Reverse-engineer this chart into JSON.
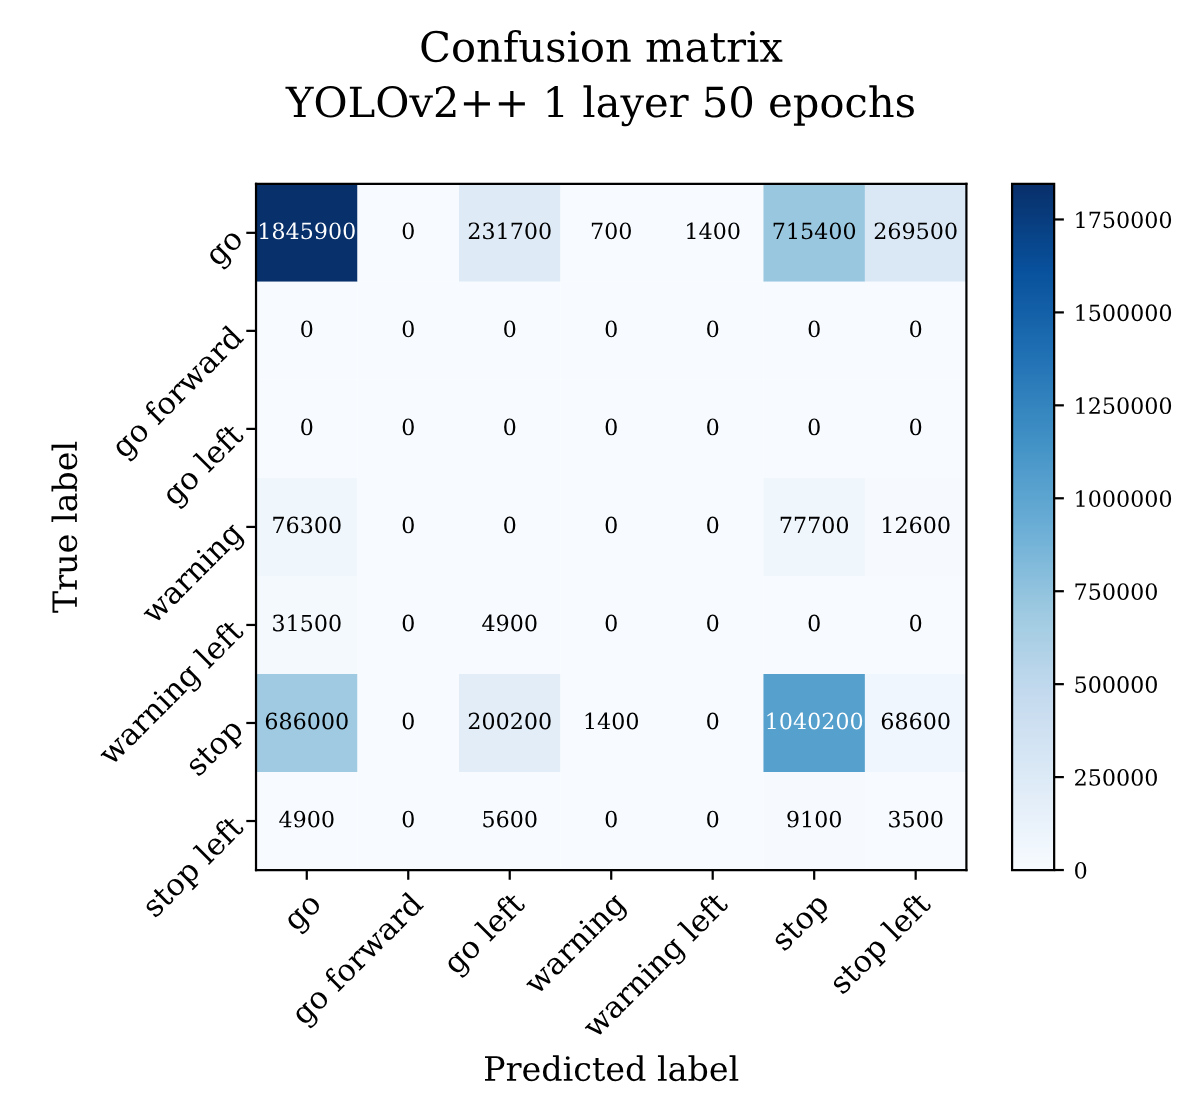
{
  "chart_data": {
    "type": "heatmap",
    "title": "Confusion matrix",
    "subtitle": "YOLOv2++ 1 layer 50 epochs",
    "xlabel": "Predicted label",
    "ylabel": "True label",
    "categories": [
      "go",
      "go forward",
      "go left",
      "warning",
      "warning left",
      "stop",
      "stop left"
    ],
    "y_categories": [
      "go",
      "go forward",
      "go left",
      "warning",
      "warning left",
      "stop",
      "stop left"
    ],
    "cells": [
      [
        1845900,
        0,
        231700,
        700,
        1400,
        715400,
        269500
      ],
      [
        0,
        0,
        0,
        0,
        0,
        0,
        0
      ],
      [
        0,
        0,
        0,
        0,
        0,
        0,
        0
      ],
      [
        76300,
        0,
        0,
        0,
        0,
        77700,
        12600
      ],
      [
        31500,
        0,
        4900,
        0,
        0,
        0,
        0
      ],
      [
        686000,
        0,
        200200,
        1400,
        0,
        1040200,
        68600
      ],
      [
        4900,
        0,
        5600,
        0,
        0,
        9100,
        3500
      ]
    ],
    "clim": [
      0,
      1845900
    ],
    "cticks": [
      0,
      250000,
      500000,
      750000,
      1000000,
      1250000,
      1500000,
      1750000
    ],
    "data_labels": true,
    "grid": false
  }
}
